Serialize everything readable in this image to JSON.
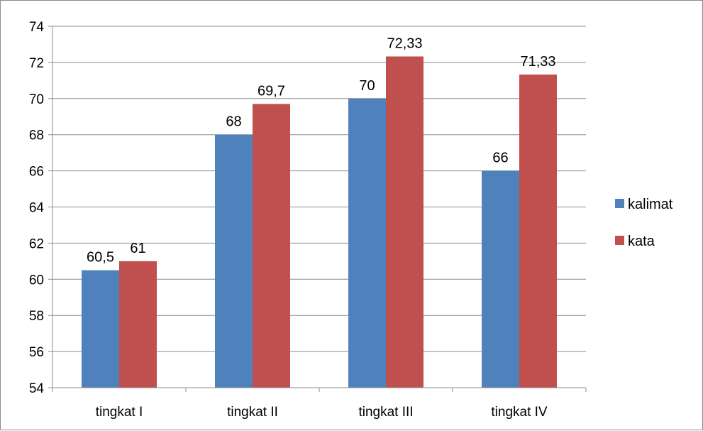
{
  "chart_data": {
    "type": "bar",
    "categories": [
      "tingkat I",
      "tingkat II",
      "tingkat III",
      "tingkat IV"
    ],
    "series": [
      {
        "name": "kalimat",
        "color": "#4f81bd",
        "values": [
          60.5,
          68,
          70,
          66
        ],
        "labels": [
          "60,5",
          "68",
          "70",
          "66"
        ]
      },
      {
        "name": "kata",
        "color": "#c0504d",
        "values": [
          61,
          69.7,
          72.33,
          71.33
        ],
        "labels": [
          "61",
          "69,7",
          "72,33",
          "71,33"
        ]
      }
    ],
    "ylim": [
      54,
      74
    ],
    "yticks": [
      54,
      56,
      58,
      60,
      62,
      64,
      66,
      68,
      70,
      72,
      74
    ],
    "grid": true,
    "legend_position": "right",
    "title": "",
    "xlabel": "",
    "ylabel": ""
  }
}
